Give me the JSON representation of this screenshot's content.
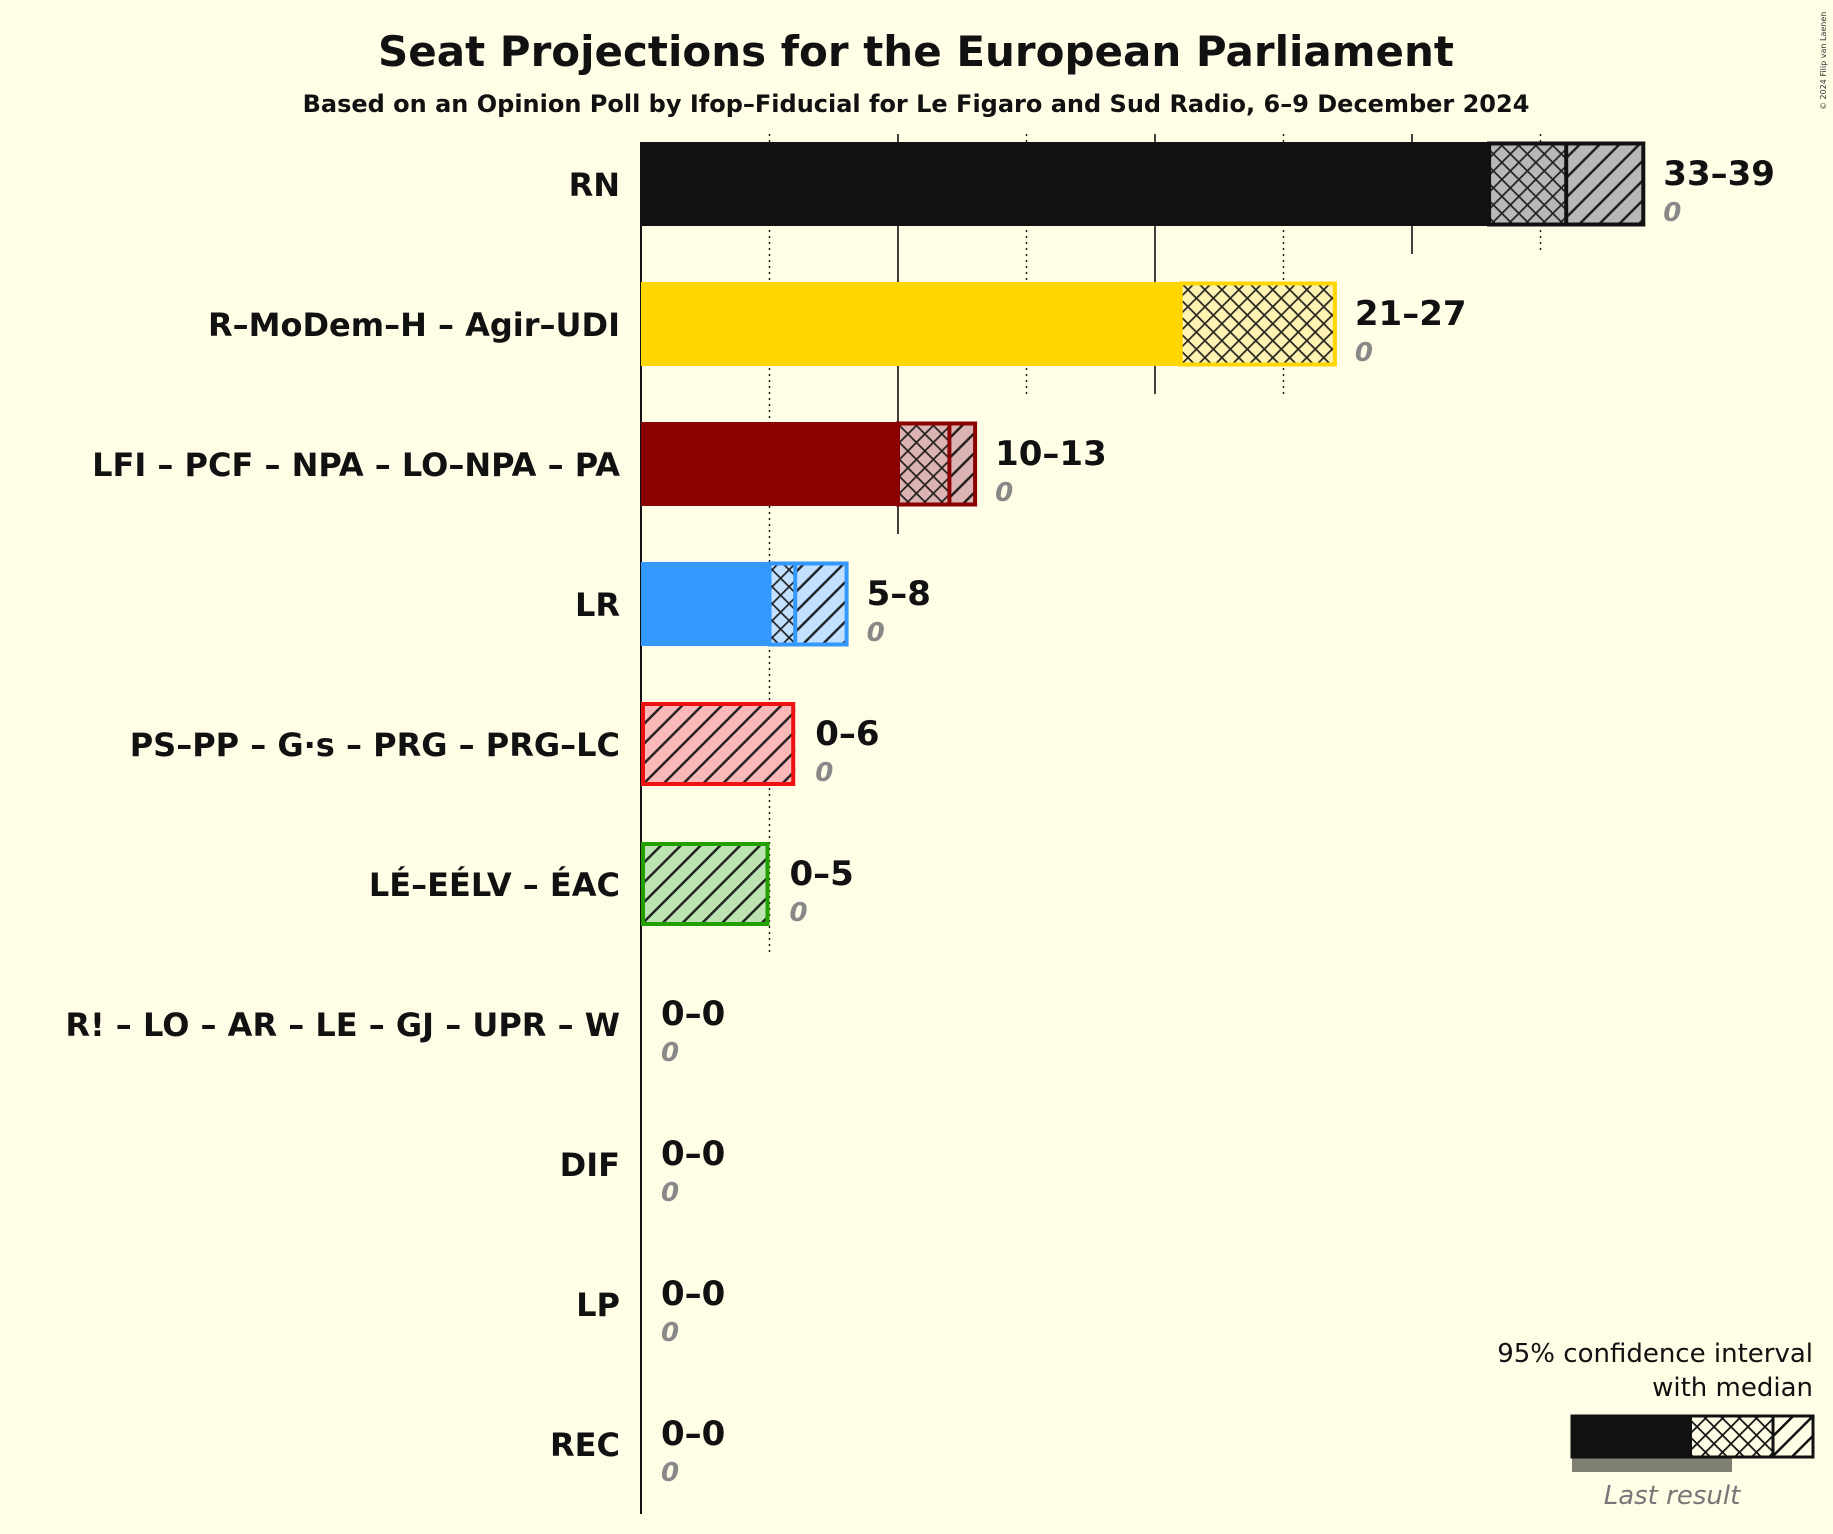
{
  "chart_data": {
    "type": "bar",
    "orientation": "horizontal",
    "title": "Seat Projections for the European Parliament",
    "subtitle": "Based on an Opinion Poll by Ifop–Fiducial for Le Figaro and Sud Radio, 6–9 December 2024",
    "copyright": "© 2024 Filip van Laenen",
    "xlim": [
      0,
      39
    ],
    "gridlines": [
      5,
      10,
      15,
      20,
      25,
      30,
      35
    ],
    "categories": [
      "RN",
      "R–MoDem–H – Agir–UDI",
      "LFI – PCF – NPA – LO–NPA – PA",
      "LR",
      "PS–PP – G·s – PRG – PRG–LC",
      "LÉ–EÉLV – ÉAC",
      "R! – LO – AR – LE – GJ – UPR – W",
      "DIF",
      "LP",
      "REC"
    ],
    "series": [
      {
        "name": "low",
        "values": [
          33,
          21,
          10,
          5,
          0,
          0,
          0,
          0,
          0,
          0
        ]
      },
      {
        "name": "median",
        "values": [
          36,
          27,
          12,
          6,
          0,
          0,
          0,
          0,
          0,
          0
        ]
      },
      {
        "name": "high",
        "values": [
          39,
          27,
          13,
          8,
          6,
          5,
          0,
          0,
          0,
          0
        ]
      },
      {
        "name": "Last result",
        "values": [
          0,
          0,
          0,
          0,
          0,
          0,
          0,
          0,
          0,
          0
        ]
      }
    ],
    "range_labels": [
      "33–39",
      "21–27",
      "10–13",
      "5–8",
      "0–6",
      "0–5",
      "0–0",
      "0–0",
      "0–0",
      "0–0"
    ],
    "last_result_labels": [
      "0",
      "0",
      "0",
      "0",
      "0",
      "0",
      "0",
      "0",
      "0",
      "0"
    ],
    "colors": [
      "#111111",
      "#FFD700",
      "#8B0000",
      "#3399FF",
      "#EE1111",
      "#22A000",
      "#111111",
      "#111111",
      "#111111",
      "#111111"
    ],
    "legend": {
      "position": "bottom-right",
      "title_line1": "95% confidence interval",
      "title_line2": "with median",
      "last_result": "Last result"
    }
  }
}
